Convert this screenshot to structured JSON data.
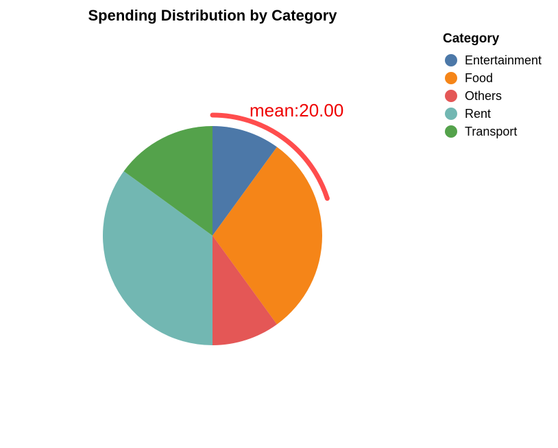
{
  "chart_data": {
    "type": "pie",
    "title": "Spending Distribution by Category",
    "legend": {
      "title": "Category",
      "placement": "top-right"
    },
    "slices": [
      {
        "label": "Entertainment",
        "value": 10,
        "color": "#4c78a8"
      },
      {
        "label": "Food",
        "value": 30,
        "color": "#f58518"
      },
      {
        "label": "Others",
        "value": 10,
        "color": "#e45756"
      },
      {
        "label": "Rent",
        "value": 35,
        "color": "#72b7b2"
      },
      {
        "label": "Transport",
        "value": 15,
        "color": "#54a24b"
      }
    ],
    "annotation": {
      "text": "mean:20.00",
      "value": 20,
      "text_color": "#ee0000",
      "arc_color": "#ff4d4d"
    }
  }
}
